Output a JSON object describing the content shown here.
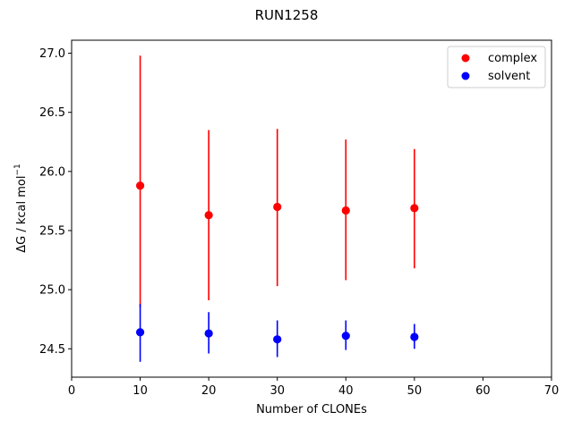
{
  "chart_data": {
    "type": "scatter",
    "title": "RUN1258",
    "xlabel": "Number of CLONEs",
    "ylabel": "ΔG / kcal mol",
    "ylabel_superscript": "−1",
    "xlim": [
      0,
      70
    ],
    "ylim": [
      24.26,
      27.11
    ],
    "xticks": [
      0,
      10,
      20,
      30,
      40,
      50,
      60,
      70
    ],
    "yticks": [
      24.5,
      25.0,
      25.5,
      26.0,
      26.5,
      27.0
    ],
    "ytick_labels": [
      "24.5",
      "25.0",
      "25.5",
      "26.0",
      "26.5",
      "27.0"
    ],
    "grid": false,
    "legend_position": "top-right",
    "error_bars": true,
    "series": [
      {
        "name": "complex",
        "color": "#ff0000",
        "x": [
          10,
          20,
          30,
          40,
          50
        ],
        "y": [
          25.88,
          25.63,
          25.7,
          25.67,
          25.69
        ],
        "err_low": [
          24.85,
          24.91,
          25.03,
          25.08,
          25.18
        ],
        "err_high": [
          26.98,
          26.35,
          26.36,
          26.27,
          26.19
        ]
      },
      {
        "name": "solvent",
        "color": "#0000ff",
        "x": [
          10,
          20,
          30,
          40,
          50
        ],
        "y": [
          24.64,
          24.63,
          24.58,
          24.61,
          24.6
        ],
        "err_low": [
          24.39,
          24.46,
          24.43,
          24.49,
          24.5
        ],
        "err_high": [
          24.88,
          24.81,
          24.74,
          24.74,
          24.71
        ]
      }
    ]
  }
}
